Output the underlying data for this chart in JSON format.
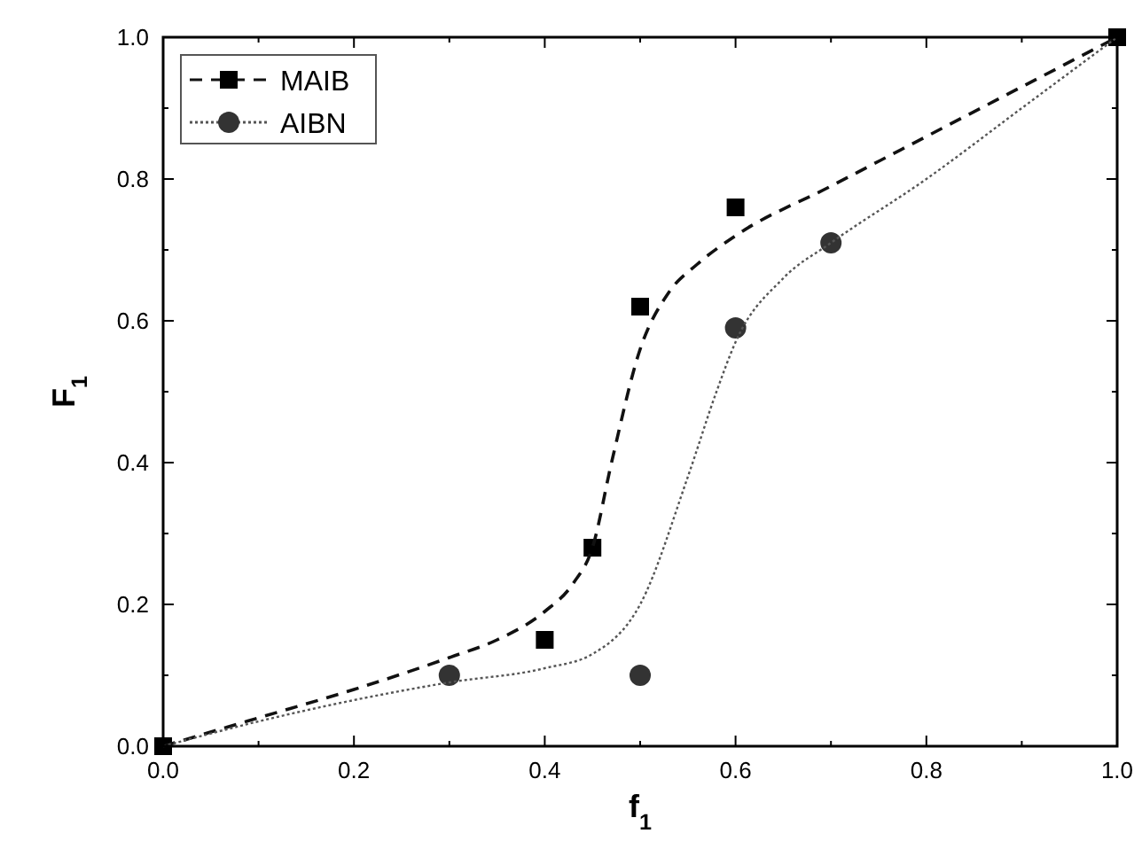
{
  "chart_data": {
    "type": "scatter",
    "xlabel": "f$_{1}$",
    "ylabel": "F$_{1}$",
    "xlim": [
      0,
      1
    ],
    "ylim": [
      0,
      1
    ],
    "xticks": [
      {
        "value": 0,
        "label": "0.0"
      },
      {
        "value": 0.1,
        "label": null
      },
      {
        "value": 0.2,
        "label": "0.2"
      },
      {
        "value": 0.3,
        "label": null
      },
      {
        "value": 0.4,
        "label": "0.4"
      },
      {
        "value": 0.5,
        "label": null
      },
      {
        "value": 0.6,
        "label": "0.6"
      },
      {
        "value": 0.7,
        "label": null
      },
      {
        "value": 0.8,
        "label": "0.8"
      },
      {
        "value": 0.9,
        "label": null
      },
      {
        "value": 1,
        "label": "1.0"
      }
    ],
    "yticks": [
      {
        "value": 0,
        "label": "0.0"
      },
      {
        "value": 0.1,
        "label": null
      },
      {
        "value": 0.2,
        "label": "0.2"
      },
      {
        "value": 0.3,
        "label": null
      },
      {
        "value": 0.4,
        "label": "0.4"
      },
      {
        "value": 0.5,
        "label": null
      },
      {
        "value": 0.6,
        "label": "0.6"
      },
      {
        "value": 0.7,
        "label": null
      },
      {
        "value": 0.8,
        "label": "0.8"
      },
      {
        "value": 0.9,
        "label": null
      },
      {
        "value": 1,
        "label": "1.0"
      }
    ],
    "legend": "top left",
    "series": [
      {
        "name": "MAIB",
        "marker": "square",
        "color": "#000000",
        "x": [
          0,
          0.4,
          0.45,
          0.5,
          0.6,
          1
        ],
        "values": [
          0,
          0.15,
          0.28,
          0.62,
          0.76,
          1
        ]
      },
      {
        "type": "line",
        "line_style": "dashed",
        "color": "#111111",
        "x": [
          0,
          0.1,
          0.2,
          0.3,
          0.35,
          0.4,
          0.43,
          0.45,
          0.47,
          0.5,
          0.53,
          0.56,
          0.6,
          0.7,
          0.8,
          0.9,
          1
        ],
        "values": [
          0,
          0.04,
          0.08,
          0.125,
          0.15,
          0.19,
          0.23,
          0.28,
          0.4,
          0.56,
          0.64,
          0.68,
          0.72,
          0.79,
          0.86,
          0.93,
          1
        ]
      },
      {
        "name": "AIBN",
        "marker": "circle",
        "color": "#333333",
        "x": [
          0.3,
          0.5,
          0.6,
          0.7
        ],
        "values": [
          0.1,
          0.1,
          0.59,
          0.71
        ]
      },
      {
        "type": "line",
        "line_style": "dotted",
        "color": "#555555",
        "x": [
          0,
          0.1,
          0.2,
          0.3,
          0.4,
          0.45,
          0.5,
          0.55,
          0.58,
          0.6,
          0.65,
          0.7,
          0.8,
          0.9,
          1
        ],
        "values": [
          0,
          0.035,
          0.065,
          0.09,
          0.11,
          0.13,
          0.2,
          0.38,
          0.5,
          0.57,
          0.66,
          0.71,
          0.8,
          0.9,
          1
        ]
      }
    ]
  }
}
